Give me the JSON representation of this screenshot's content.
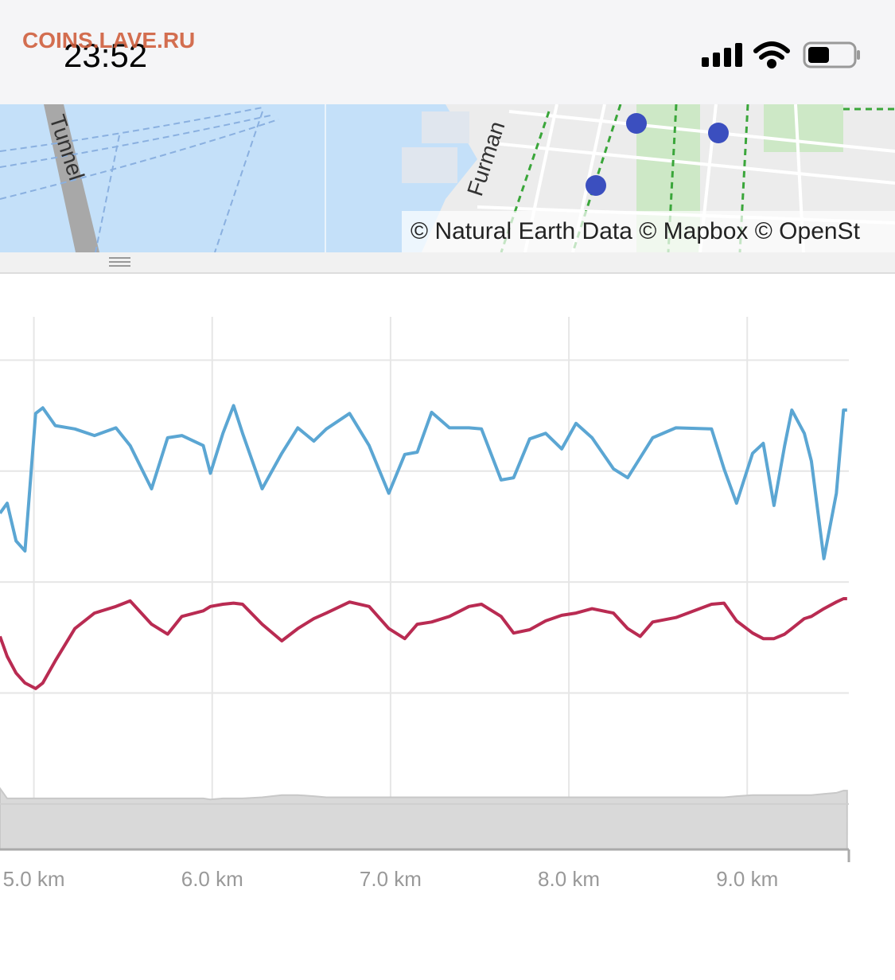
{
  "watermark": "COINS.LAVE.RU",
  "status_bar": {
    "time": "23:52"
  },
  "map": {
    "labels": [
      "Tunnel",
      "Furman"
    ],
    "attribution": "© Natural Earth Data © Mapbox © OpenSt"
  },
  "chart_data": {
    "type": "line",
    "x": [
      4.81,
      4.85,
      4.9,
      4.95,
      5.01,
      5.05,
      5.12,
      5.23,
      5.34,
      5.46,
      5.54,
      5.66,
      5.75,
      5.83,
      5.95,
      5.99,
      6.06,
      6.12,
      6.17,
      6.28,
      6.39,
      6.48,
      6.57,
      6.64,
      6.77,
      6.88,
      6.99,
      7.08,
      7.15,
      7.23,
      7.33,
      7.44,
      7.51,
      7.62,
      7.69,
      7.78,
      7.87,
      7.96,
      8.04,
      8.13,
      8.25,
      8.33,
      8.4,
      8.47,
      8.6,
      8.8,
      8.87,
      8.94,
      9.03,
      9.09,
      9.15,
      9.21,
      9.25,
      9.32,
      9.36,
      9.43,
      9.5,
      9.54,
      9.56
    ],
    "series": [
      {
        "color": "#5ba6d3",
        "values": [
          2.62,
          2.71,
          2.37,
          2.28,
          3.52,
          3.57,
          3.41,
          3.38,
          3.32,
          3.39,
          3.23,
          2.84,
          3.3,
          3.32,
          3.23,
          2.98,
          3.34,
          3.59,
          3.34,
          2.84,
          3.16,
          3.39,
          3.27,
          3.38,
          3.52,
          3.23,
          2.8,
          3.15,
          3.17,
          3.53,
          3.39,
          3.39,
          3.38,
          2.92,
          2.94,
          3.29,
          3.34,
          3.2,
          3.43,
          3.3,
          3.02,
          2.94,
          3.12,
          3.3,
          3.39,
          3.38,
          3.02,
          2.71,
          3.16,
          3.25,
          2.69,
          3.23,
          3.55,
          3.34,
          3.09,
          2.21,
          2.8,
          3.55,
          3.55
        ]
      },
      {
        "color": "#b92b52",
        "values": [
          1.51,
          1.33,
          1.18,
          1.09,
          1.04,
          1.09,
          1.29,
          1.58,
          1.72,
          1.78,
          1.83,
          1.62,
          1.53,
          1.69,
          1.74,
          1.78,
          1.8,
          1.81,
          1.8,
          1.62,
          1.47,
          1.58,
          1.67,
          1.72,
          1.82,
          1.78,
          1.58,
          1.49,
          1.62,
          1.64,
          1.69,
          1.78,
          1.8,
          1.69,
          1.54,
          1.57,
          1.65,
          1.7,
          1.72,
          1.76,
          1.72,
          1.58,
          1.51,
          1.64,
          1.68,
          1.8,
          1.81,
          1.65,
          1.54,
          1.49,
          1.49,
          1.53,
          1.58,
          1.67,
          1.69,
          1.76,
          1.82,
          1.85,
          1.85
        ]
      },
      {
        "color": "#d9d9d9",
        "style": "area",
        "values": [
          0.14,
          0.05,
          0.05,
          0.05,
          0.05,
          0.05,
          0.05,
          0.05,
          0.05,
          0.05,
          0.05,
          0.05,
          0.05,
          0.05,
          0.05,
          0.04,
          0.05,
          0.05,
          0.05,
          0.06,
          0.08,
          0.08,
          0.07,
          0.06,
          0.06,
          0.06,
          0.06,
          0.06,
          0.06,
          0.06,
          0.06,
          0.06,
          0.06,
          0.06,
          0.06,
          0.06,
          0.06,
          0.06,
          0.06,
          0.06,
          0.06,
          0.06,
          0.06,
          0.06,
          0.06,
          0.06,
          0.06,
          0.07,
          0.08,
          0.08,
          0.08,
          0.08,
          0.08,
          0.08,
          0.08,
          0.09,
          0.1,
          0.12,
          0.12
        ]
      }
    ],
    "xlim": [
      4.81,
      9.57
    ],
    "xticks": [
      {
        "value": 5,
        "label": "5.0 km"
      },
      {
        "value": 6,
        "label": "6.0 km"
      },
      {
        "value": 7,
        "label": "7.0 km"
      },
      {
        "value": 8,
        "label": "8.0 km"
      },
      {
        "value": 9,
        "label": "9.0 km"
      }
    ],
    "ylim": [
      -0.41,
      4.39
    ],
    "ygrid": [
      0,
      1,
      2,
      3,
      4
    ],
    "grid": true
  }
}
